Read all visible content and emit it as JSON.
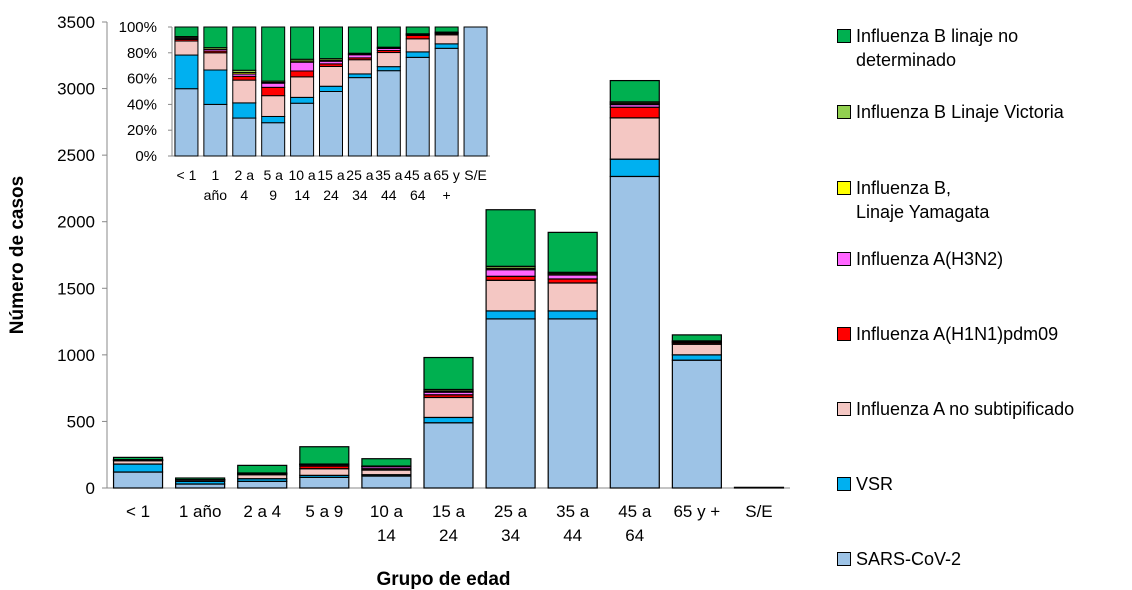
{
  "chart_data": [
    {
      "type": "bar",
      "stacked": true,
      "ylabel": "Número de casos",
      "xlabel": "Grupo de edad",
      "ylim": [
        0,
        3500
      ],
      "yticks": [
        "0",
        "500",
        "1000",
        "1500",
        "2000",
        "2500",
        "3000",
        "3500"
      ],
      "categories": [
        [
          "< 1"
        ],
        [
          "1 año"
        ],
        [
          "2 a 4"
        ],
        [
          "5 a 9"
        ],
        [
          "10 a",
          "14"
        ],
        [
          "15 a",
          "24"
        ],
        [
          "25 a",
          "34"
        ],
        [
          "35 a",
          "44"
        ],
        [
          "45 a",
          "64"
        ],
        [
          "65 y +"
        ],
        [
          "S/E"
        ]
      ],
      "series": [
        {
          "name": "SARS-CoV-2",
          "color": "#9dc3e6",
          "values": [
            120,
            30,
            50,
            80,
            90,
            490,
            1270,
            1270,
            2340,
            960,
            5
          ]
        },
        {
          "name": "VSR",
          "color": "#00b0f0",
          "values": [
            60,
            20,
            20,
            15,
            10,
            40,
            60,
            60,
            130,
            40,
            0
          ]
        },
        {
          "name": "Influenza A no subtipificado",
          "color": "#f4c7c3",
          "values": [
            25,
            10,
            30,
            50,
            35,
            150,
            230,
            210,
            310,
            80,
            0
          ]
        },
        {
          "name": "Influenza A(H1N1)pdm09",
          "color": "#ff0000",
          "values": [
            3,
            1,
            5,
            20,
            10,
            20,
            30,
            30,
            80,
            10,
            0
          ]
        },
        {
          "name": "Influenza A(H3N2)",
          "color": "#ff66ff",
          "values": [
            2,
            1,
            3,
            10,
            15,
            20,
            50,
            30,
            20,
            5,
            0
          ]
        },
        {
          "name": "Influenza B, Linaje Yamagata",
          "color": "#ffff00",
          "values": [
            1,
            0,
            2,
            2,
            2,
            8,
            10,
            10,
            10,
            5,
            0
          ]
        },
        {
          "name": "Influenza B Linaje Victoria",
          "color": "#92d050",
          "values": [
            2,
            1,
            3,
            3,
            3,
            12,
            15,
            10,
            10,
            5,
            0
          ]
        },
        {
          "name": "Influenza B linaje no determinado",
          "color": "#00b050",
          "values": [
            17,
            12,
            57,
            130,
            55,
            240,
            425,
            300,
            160,
            45,
            0
          ]
        }
      ]
    },
    {
      "type": "bar",
      "stacked": true,
      "percent": true,
      "ylim": [
        0,
        100
      ],
      "yticks": [
        "0%",
        "20%",
        "40%",
        "60%",
        "80%",
        "100%"
      ],
      "categories": [
        [
          "< 1"
        ],
        [
          "1",
          "año"
        ],
        [
          "2 a",
          "4"
        ],
        [
          "5 a",
          "9"
        ],
        [
          "10 a",
          "14"
        ],
        [
          "15 a",
          "24"
        ],
        [
          "25 a",
          "34"
        ],
        [
          "35 a",
          "44"
        ],
        [
          "45 a",
          "64"
        ],
        [
          "65 y",
          "+"
        ],
        [
          "S/E"
        ]
      ]
    }
  ],
  "legend": [
    {
      "label": "Influenza B linaje no\n determinado",
      "color": "#00b050"
    },
    {
      "label": "Influenza B Linaje Victoria",
      "color": "#92d050"
    },
    {
      "label": "Influenza B,\n Linaje Yamagata",
      "color": "#ffff00"
    },
    {
      "label": "Influenza A(H3N2)",
      "color": "#ff66ff"
    },
    {
      "label": "Influenza A(H1N1)pdm09",
      "color": "#ff0000"
    },
    {
      "label": "Influenza A no subtipificado",
      "color": "#f4c7c3"
    },
    {
      "label": "VSR",
      "color": "#00b0f0"
    },
    {
      "label": "SARS-CoV-2",
      "color": "#9dc3e6"
    }
  ]
}
